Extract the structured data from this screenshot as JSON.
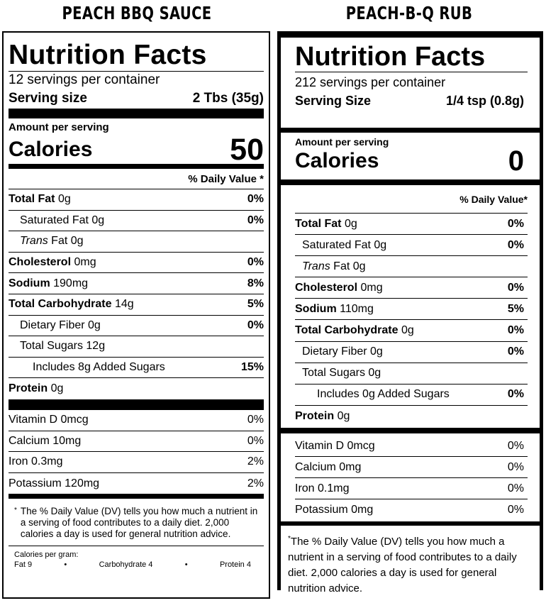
{
  "labels": [
    {
      "product": "PEACH BBQ SAUCE",
      "heading": "Nutrition Facts",
      "servings": "12 servings per container",
      "serving_size_label": "Serving size",
      "serving_size_value": "2 Tbs (35g)",
      "amount_per_serving": "Amount per serving",
      "calories_label": "Calories",
      "calories_value": "50",
      "dv_header": "% Daily Value *",
      "nutrients": [
        {
          "name": "Total Fat",
          "amount": "0g",
          "dv": "0%"
        },
        {
          "name": "Saturated Fat",
          "amount": "0g",
          "dv": "0%"
        },
        {
          "name": "Trans",
          "suffix": "Fat",
          "amount": "0g",
          "dv": ""
        },
        {
          "name": "Cholesterol",
          "amount": "0mg",
          "dv": "0%"
        },
        {
          "name": "Sodium",
          "amount": "190mg",
          "dv": "8%"
        },
        {
          "name": "Total Carbohydrate",
          "amount": "14g",
          "dv": "5%"
        },
        {
          "name": "Dietary Fiber",
          "amount": "0g",
          "dv": "0%"
        },
        {
          "name": "Total Sugars",
          "amount": "12g",
          "dv": ""
        },
        {
          "name": "Includes 8g Added Sugars",
          "amount": "",
          "dv": "15%"
        },
        {
          "name": "Protein",
          "amount": "0g",
          "dv": ""
        }
      ],
      "vitamins": [
        {
          "name": "Vitamin D 0mcg",
          "dv": "0%"
        },
        {
          "name": "Calcium 10mg",
          "dv": "0%"
        },
        {
          "name": "Iron 0.3mg",
          "dv": "2%"
        },
        {
          "name": "Potassium 120mg",
          "dv": "2%"
        }
      ],
      "footnote_mark": "*",
      "footnote": "The % Daily Value (DV) tells you how much a nutrient in a serving of food contributes to a daily diet. 2,000 calories a day is used for general nutrition advice.",
      "calories_per_gram": {
        "title": "Calories per gram:",
        "fat": "Fat 9",
        "carbohydrate": "Carbohydrate 4",
        "protein": "Protein 4",
        "separator": "•"
      }
    },
    {
      "product": "PEACH-B-Q RUB",
      "heading": "Nutrition Facts",
      "servings": "212 servings per container",
      "serving_size_label": "Serving Size",
      "serving_size_value": "1/4 tsp (0.8g)",
      "amount_per_serving": "Amount per serving",
      "calories_label": "Calories",
      "calories_value": "0",
      "dv_header": "% Daily Value*",
      "nutrients": [
        {
          "name": "Total Fat",
          "amount": "0g",
          "dv": "0%"
        },
        {
          "name": "Saturated Fat",
          "amount": "0g",
          "dv": "0%"
        },
        {
          "name": "Trans",
          "suffix": "Fat",
          "amount": "0g",
          "dv": ""
        },
        {
          "name": "Cholesterol",
          "amount": "0mg",
          "dv": "0%"
        },
        {
          "name": "Sodium",
          "amount": "110mg",
          "dv": "5%"
        },
        {
          "name": "Total Carbohydrate",
          "amount": "0g",
          "dv": "0%"
        },
        {
          "name": "Dietary Fiber",
          "amount": "0g",
          "dv": "0%"
        },
        {
          "name": "Total Sugars",
          "amount": "0g",
          "dv": ""
        },
        {
          "name": "Includes 0g Added Sugars",
          "amount": "",
          "dv": "0%"
        },
        {
          "name": "Protein",
          "amount": "0g",
          "dv": ""
        }
      ],
      "vitamins": [
        {
          "name": "Vitamin D 0mcg",
          "dv": "0%"
        },
        {
          "name": "Calcium 0mg",
          "dv": "0%"
        },
        {
          "name": "Iron 0.1mg",
          "dv": "0%"
        },
        {
          "name": "Potassium 0mg",
          "dv": "0%"
        }
      ],
      "footnote_mark": "*",
      "footnote": "The % Daily Value (DV) tells you how much a nutrient in a serving of food contributes to a daily diet. 2,000 calories a day is used for general nutrition advice."
    }
  ]
}
